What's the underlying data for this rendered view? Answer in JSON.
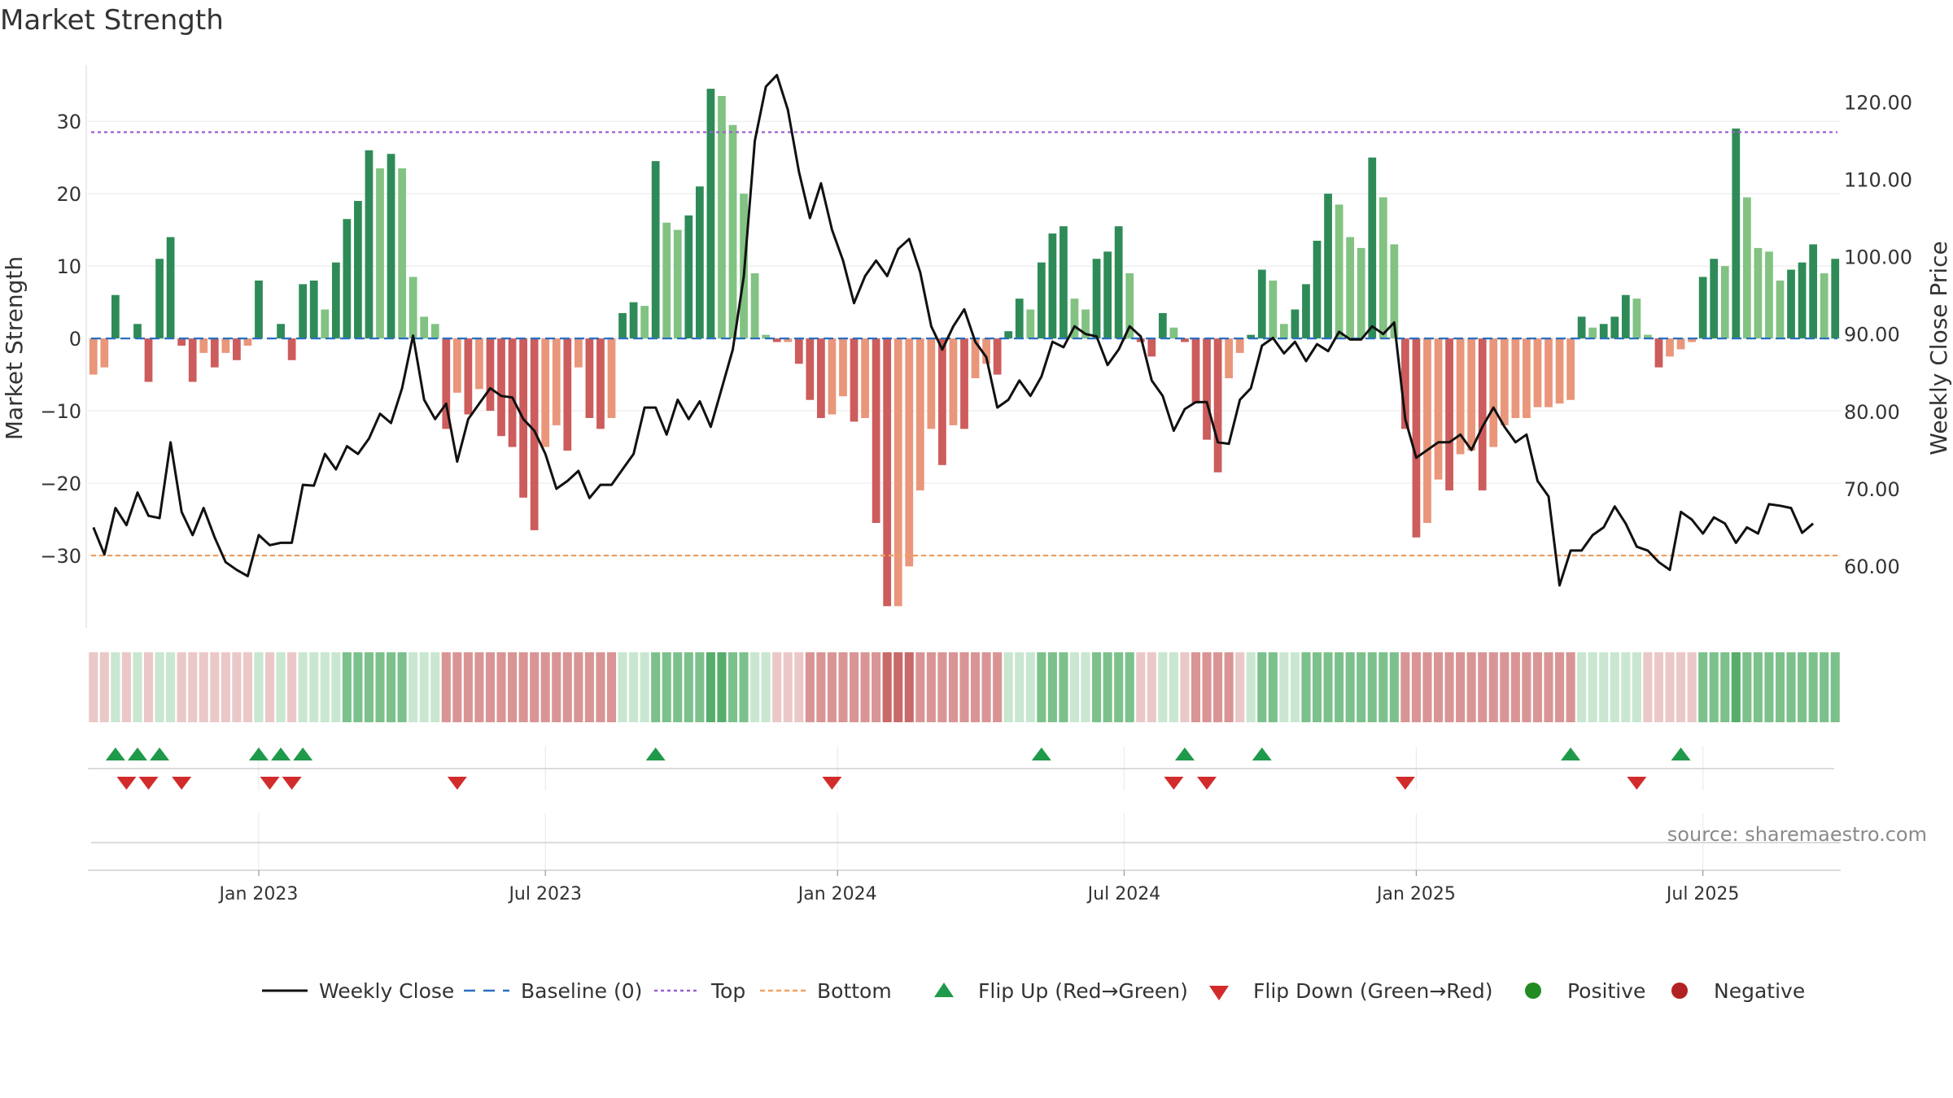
{
  "chart_data": {
    "title": "Market Strength",
    "type": "bar",
    "ylabel_left": "Market Strength",
    "ylabel_right": "Weekly Close Price",
    "ylim_left": [
      -40,
      38
    ],
    "ylim_right": [
      52,
      125
    ],
    "yticks_left": [
      30,
      20,
      10,
      0,
      -10,
      -20,
      -30
    ],
    "yticks_left_labels": [
      "30",
      "20",
      "10",
      "0",
      "−10",
      "−20",
      "−30"
    ],
    "yticks_right": [
      120,
      110,
      100,
      90,
      80,
      70,
      60
    ],
    "yticks_right_labels": [
      "120.00",
      "110.00",
      "100.00",
      "90.00",
      "80.00",
      "70.00",
      "60.00"
    ],
    "top_level": 28.5,
    "bottom_level": -30,
    "xlim_week": [
      0,
      157
    ],
    "xticks": [
      {
        "week": 15,
        "label": "Jan 2023"
      },
      {
        "week": 41,
        "label": "Jul 2023"
      },
      {
        "week": 67.5,
        "label": "Jan 2024"
      },
      {
        "week": 93.5,
        "label": "Jul 2024"
      },
      {
        "week": 120,
        "label": "Jan 2025"
      },
      {
        "week": 146,
        "label": "Jul 2025"
      }
    ],
    "strength": [
      -5,
      -4,
      6,
      0,
      2,
      -6,
      11,
      14,
      -1,
      -6,
      -2,
      -4,
      -2,
      -3,
      -1,
      8,
      0,
      2,
      -3,
      7.5,
      8,
      4,
      10.5,
      16.5,
      19,
      26,
      23.5,
      25.5,
      23.5,
      8.5,
      3,
      2,
      -12.5,
      -7.5,
      -10.5,
      -7,
      -10,
      -13.5,
      -15,
      -22,
      -26.5,
      -15,
      -12,
      -15.5,
      -4,
      -11,
      -12.5,
      -11,
      3.5,
      5,
      4.5,
      24.5,
      16,
      15,
      17,
      21,
      34.5,
      33.5,
      29.5,
      20,
      9,
      0.5,
      -0.5,
      -0.5,
      -3.5,
      -8.5,
      -11,
      -10.5,
      -8,
      -11.5,
      -11,
      -25.5,
      -37,
      -37,
      -31.5,
      -21,
      -12.5,
      -17.5,
      -12,
      -12.5,
      -5.5,
      -3.5,
      -5,
      1,
      5.5,
      4,
      10.5,
      14.5,
      15.5,
      5.5,
      4,
      11,
      12,
      15.5,
      9,
      -0.5,
      -2.5,
      3.5,
      1.5,
      -0.5,
      -9,
      -14,
      -18.5,
      -5.5,
      -2,
      0.5,
      9.5,
      8,
      2,
      4,
      7.5,
      13.5,
      20,
      18.5,
      14,
      12.5,
      25,
      19.5,
      13,
      -12.5,
      -27.5,
      -25.5,
      -19.5,
      -21,
      -16,
      -15.5,
      -21,
      -15,
      -12,
      -11,
      -11,
      -9.5,
      -9.5,
      -9,
      -8.5,
      3,
      1.5,
      2,
      3,
      6,
      5.5,
      0.5,
      -4,
      -2.5,
      -1.5,
      -0.5,
      8.5,
      11,
      10,
      29,
      19.5,
      12.5,
      12,
      8,
      9.5,
      10.5,
      13,
      9,
      11
    ],
    "close": [
      65,
      61.5,
      67.5,
      65.3,
      69.5,
      66.5,
      66.2,
      76,
      67,
      64,
      67.5,
      63.7,
      60.5,
      59.5,
      58.7,
      64,
      62.7,
      63,
      63,
      70.5,
      70.4,
      74.5,
      72.5,
      75.5,
      74.5,
      76.5,
      79.7,
      78.5,
      83,
      89.8,
      81.5,
      79,
      81,
      73.5,
      79,
      81,
      83,
      82,
      81.8,
      79,
      77.5,
      74.5,
      70,
      71,
      72.3,
      68.8,
      70.5,
      70.5,
      72.5,
      74.5,
      80.5,
      80.5,
      77,
      81.5,
      79,
      81.3,
      78,
      83,
      88,
      97.5,
      115,
      122,
      123.5,
      119,
      111,
      105,
      109.5,
      103.5,
      99.5,
      94,
      97.5,
      99.5,
      97.5,
      101,
      102.3,
      98,
      91,
      88,
      91,
      93.2,
      89,
      87,
      80.5,
      81.5,
      84,
      82,
      84.5,
      89,
      88.3,
      91,
      90,
      89.7,
      86,
      88,
      91,
      89.7,
      84,
      82,
      77.5,
      80.3,
      81.2,
      81.2,
      76,
      75.8,
      81.5,
      83,
      88.5,
      89.5,
      87.5,
      89,
      86.5,
      88.7,
      87.8,
      90.3,
      89.3,
      89.3,
      91,
      90,
      91.5,
      79,
      74,
      75,
      76,
      76,
      77,
      75,
      78,
      80.5,
      78,
      76,
      77,
      71,
      69,
      57.5,
      62,
      62,
      64,
      65,
      67.7,
      65.5,
      62.5,
      62,
      60.5,
      59.5,
      67,
      66,
      64.2,
      66.3,
      65.5,
      63,
      65,
      64.2,
      68,
      67.8,
      67.5,
      64.3,
      65.5
    ],
    "flip_up_weeks": [
      2,
      4,
      6,
      15,
      17,
      19,
      51,
      86,
      99,
      106,
      134,
      144
    ],
    "flip_down_weeks": [
      3,
      5,
      8,
      16,
      18,
      33,
      67,
      98,
      101,
      119,
      140
    ],
    "heat_levels": [
      "light-red",
      "light-red",
      "light-green",
      "light-red",
      "light-green",
      "light-red",
      "light-green",
      "light-green",
      "light-red",
      "light-red",
      "light-red",
      "light-red",
      "light-red",
      "light-red",
      "light-red",
      "light-green",
      "light-red",
      "light-green",
      "light-red",
      "light-green",
      "light-green",
      "light-green",
      "light-green",
      "green",
      "green",
      "green",
      "green",
      "green",
      "green",
      "light-green",
      "light-green",
      "light-green",
      "red",
      "red",
      "red",
      "red",
      "red",
      "red",
      "red",
      "red",
      "red",
      "red",
      "red",
      "red",
      "red",
      "red",
      "red",
      "red",
      "light-green",
      "light-green",
      "light-green",
      "green",
      "green",
      "green",
      "green",
      "green",
      "dark-green",
      "dark-green",
      "green",
      "green",
      "light-green",
      "light-green",
      "light-red",
      "light-red",
      "light-red",
      "red",
      "red",
      "red",
      "red",
      "red",
      "red",
      "red",
      "dark-red",
      "dark-red",
      "dark-red",
      "red",
      "red",
      "red",
      "red",
      "red",
      "red",
      "red",
      "red",
      "light-green",
      "light-green",
      "light-green",
      "green",
      "green",
      "green",
      "light-green",
      "light-green",
      "green",
      "green",
      "green",
      "green",
      "light-red",
      "light-red",
      "light-green",
      "light-green",
      "light-red",
      "red",
      "red",
      "red",
      "red",
      "light-red",
      "light-green",
      "green",
      "green",
      "light-green",
      "light-green",
      "green",
      "green",
      "green",
      "green",
      "green",
      "green",
      "green",
      "green",
      "green",
      "red",
      "red",
      "red",
      "red",
      "red",
      "red",
      "red",
      "red",
      "red",
      "red",
      "red",
      "red",
      "red",
      "red",
      "red",
      "red",
      "light-green",
      "light-green",
      "light-green",
      "light-green",
      "light-green",
      "light-green",
      "light-red",
      "light-red",
      "light-red",
      "light-red",
      "light-red",
      "green",
      "green",
      "green",
      "dark-green",
      "green",
      "green",
      "green",
      "green",
      "green",
      "green",
      "green",
      "green",
      "green"
    ],
    "watermark": "source: sharemaestro.com",
    "legend": [
      {
        "kind": "line-solid",
        "label": "Weekly Close"
      },
      {
        "kind": "line-dashed",
        "label": "Baseline (0)"
      },
      {
        "kind": "line-dotted",
        "label": "Top"
      },
      {
        "kind": "line-dotted-orange",
        "label": "Bottom"
      },
      {
        "kind": "tri-up",
        "label": "Flip Up (Red→Green)"
      },
      {
        "kind": "tri-down",
        "label": "Flip Down (Green→Red)"
      },
      {
        "kind": "dot-green",
        "label": "Positive"
      },
      {
        "kind": "dot-red",
        "label": "Negative"
      }
    ],
    "colors": {
      "up_dark": "#2e8b57",
      "up_light": "#82c282",
      "down_dark": "#cd5c5c",
      "down_light": "#e9967a",
      "close_line": "#111111",
      "baseline": "#2a6fbf",
      "top": "#9a5fd0",
      "bottom": "#f0a060",
      "flip_up": "#1f9a4a",
      "flip_down": "#d22b2b",
      "positive": "#228b22",
      "negative": "#b22222",
      "grid": "#ebebeb",
      "heat_dark_green": "#57ad6b",
      "heat_green": "#7cc18c",
      "heat_light_green": "#c9e7d0",
      "heat_light_red": "#ebc8c8",
      "heat_red": "#d99595",
      "heat_dark_red": "#c86a6a"
    }
  }
}
